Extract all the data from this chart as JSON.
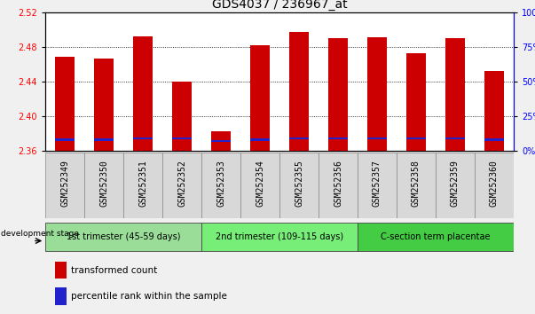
{
  "title": "GDS4037 / 236967_at",
  "samples": [
    "GSM252349",
    "GSM252350",
    "GSM252351",
    "GSM252352",
    "GSM252353",
    "GSM252354",
    "GSM252355",
    "GSM252356",
    "GSM252357",
    "GSM252358",
    "GSM252359",
    "GSM252360"
  ],
  "transformed_count": [
    2.469,
    2.467,
    2.492,
    2.44,
    2.383,
    2.482,
    2.498,
    2.49,
    2.491,
    2.473,
    2.49,
    2.452
  ],
  "percentile_rank": [
    8,
    8,
    9,
    9,
    7,
    8,
    9,
    9,
    9,
    9,
    9,
    8
  ],
  "ymin": 2.36,
  "ymax": 2.52,
  "yticks": [
    2.36,
    2.4,
    2.44,
    2.48,
    2.52
  ],
  "right_yticks": [
    0,
    25,
    50,
    75,
    100
  ],
  "bar_color_red": "#cc0000",
  "bar_color_blue": "#2222cc",
  "bar_width": 0.5,
  "groups": [
    {
      "label": "1st trimester (45-59 days)",
      "start": 0,
      "end": 3,
      "color": "#99dd99"
    },
    {
      "label": "2nd trimester (109-115 days)",
      "start": 4,
      "end": 7,
      "color": "#77ee77"
    },
    {
      "label": "C-section term placentae",
      "start": 8,
      "end": 11,
      "color": "#44cc44"
    }
  ],
  "legend_red_label": "transformed count",
  "legend_blue_label": "percentile rank within the sample",
  "dev_stage_label": "development stage",
  "plot_bg": "#ffffff",
  "bg_color": "#f0f0f0",
  "xtick_bg": "#cccccc",
  "title_fontsize": 10,
  "tick_fontsize": 7,
  "group_fontsize": 7
}
